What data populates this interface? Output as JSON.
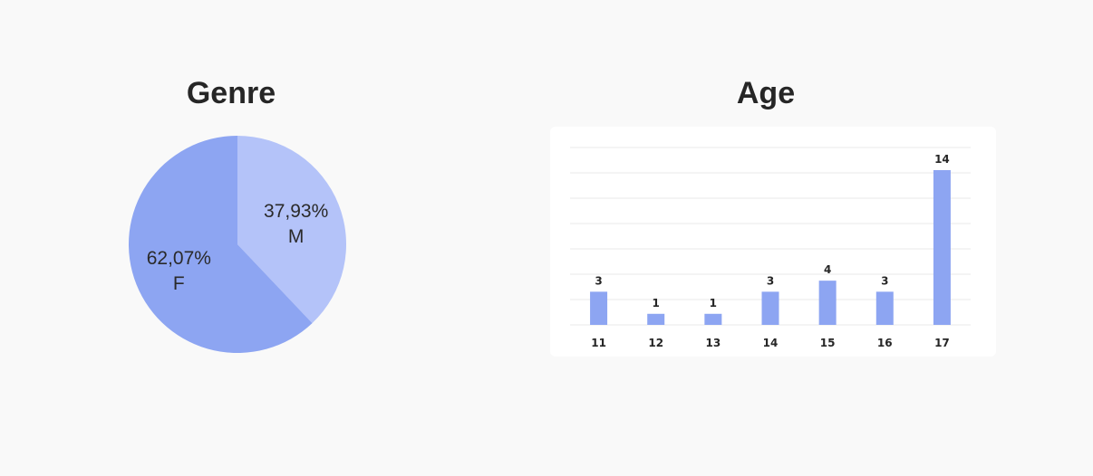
{
  "chart_data": [
    {
      "type": "pie",
      "title": "Genre",
      "slices": [
        {
          "label": "M",
          "value": 37.93,
          "display": "37,93%",
          "color": "#b4c3f9"
        },
        {
          "label": "F",
          "value": 62.07,
          "display": "62,07%",
          "color": "#8da5f2"
        }
      ]
    },
    {
      "type": "bar",
      "title": "Age",
      "categories": [
        "11",
        "12",
        "13",
        "14",
        "15",
        "16",
        "17"
      ],
      "values": [
        3,
        1,
        1,
        3,
        4,
        3,
        14
      ],
      "ylim": [
        0,
        14
      ],
      "grid": true,
      "bar_color": "#8da5f2"
    }
  ]
}
